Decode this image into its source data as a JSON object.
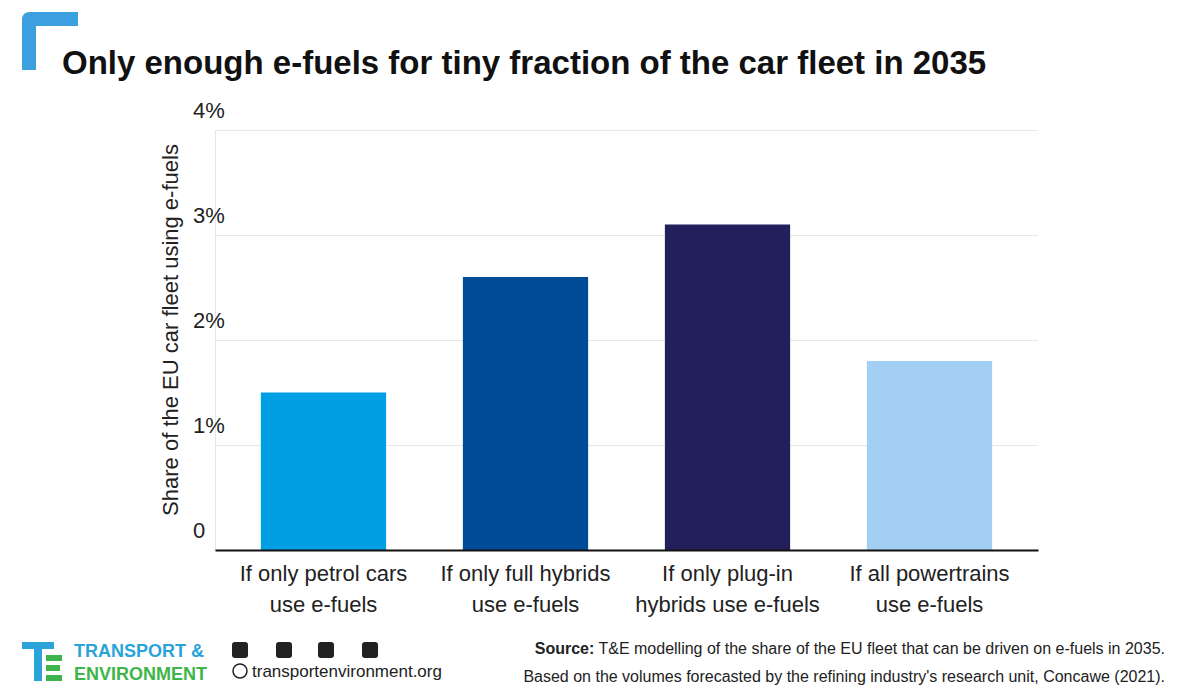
{
  "chart_data": {
    "type": "bar",
    "title": "Only enough e-fuels for tiny fraction of the car fleet in 2035",
    "y_label": "Share of the EU car fleet using e-fuels",
    "categories": [
      "If only petrol cars use e-fuels",
      "If only full hybrids use e-fuels",
      "If only plug-in hybrids use e-fuels",
      "If all powertrains use e-fuels"
    ],
    "values": [
      1.5,
      2.6,
      3.1,
      1.8
    ],
    "colors": [
      "#009fe3",
      "#004c97",
      "#231f5a",
      "#a3cff5"
    ],
    "ylim": [
      0,
      4
    ],
    "yticks": [
      0,
      {
        "value": 1,
        "label": "1%"
      },
      {
        "value": 2,
        "label": "2%"
      },
      {
        "value": 3,
        "label": "3%"
      },
      {
        "value": 4,
        "label": "4%"
      }
    ],
    "grid": true
  },
  "footer": {
    "source_label": "Source:",
    "source": [
      "T&E modelling of the share of the EU fleet that can be driven on e-fuels in 2035.",
      "Based on the volumes forecasted by the refining industry's research unit, Concawe (2021)."
    ],
    "brand": [
      "TRANSPORT &",
      "ENVIRONMENT"
    ],
    "website": "transportenvironment.org"
  }
}
